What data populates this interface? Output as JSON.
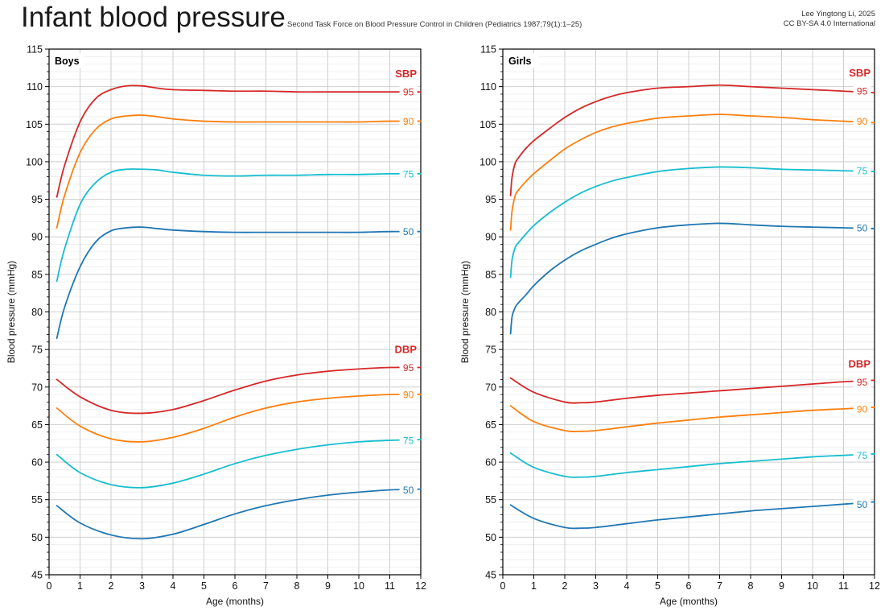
{
  "header": {
    "title": "Infant blood pressure",
    "subtitle": "Second Task Force on Blood Pressure Control in Children (Pediatrics 1987;79(1):1–25)",
    "credit_line1": "Lee Yingtong Li, 2025",
    "credit_line2": "CC BY-SA 4.0 International"
  },
  "colors": {
    "p95": "#d62728",
    "p90": "#ff7f0e",
    "p75": "#17becf",
    "p50": "#1f77b4",
    "group_label": "#d62728"
  },
  "chart_data": [
    {
      "type": "line",
      "panel": "Boys",
      "xlabel": "Age (months)",
      "ylabel": "Blood pressure (mmHg)",
      "xlim": [
        0,
        12
      ],
      "ylim": [
        45,
        115
      ],
      "xticks": [
        0,
        1,
        2,
        3,
        4,
        5,
        6,
        7,
        8,
        9,
        10,
        11,
        12
      ],
      "yticks": [
        45,
        50,
        55,
        60,
        65,
        70,
        75,
        80,
        85,
        90,
        95,
        100,
        105,
        110,
        115
      ],
      "grid": true,
      "groups": [
        {
          "label": "SBP",
          "series": [
            {
              "name": "95",
              "color_key": "p95",
              "x": [
                0.25,
                0.5,
                1,
                1.5,
                2,
                2.5,
                3,
                3.5,
                4,
                5,
                6,
                7,
                8,
                9,
                10,
                11,
                12
              ],
              "y": [
                95.3,
                99.5,
                105.3,
                108.4,
                109.6,
                110.1,
                110.1,
                109.8,
                109.6,
                109.5,
                109.4,
                109.4,
                109.3,
                109.3,
                109.3,
                109.3,
                109.3
              ]
            },
            {
              "name": "90",
              "color_key": "p90",
              "x": [
                0.25,
                0.5,
                1,
                1.5,
                2,
                2.5,
                3,
                3.5,
                4,
                5,
                6,
                7,
                8,
                9,
                10,
                11,
                12
              ],
              "y": [
                91.2,
                95.5,
                101.2,
                104.3,
                105.7,
                106.1,
                106.2,
                106.0,
                105.7,
                105.4,
                105.3,
                105.3,
                105.3,
                105.3,
                105.3,
                105.4,
                105.4
              ]
            },
            {
              "name": "75",
              "color_key": "p75",
              "x": [
                0.25,
                0.5,
                1,
                1.5,
                2,
                2.5,
                3,
                3.5,
                4,
                5,
                6,
                7,
                8,
                9,
                10,
                11,
                12
              ],
              "y": [
                84.1,
                88.4,
                94.3,
                97.2,
                98.6,
                99.0,
                99.0,
                98.9,
                98.6,
                98.2,
                98.1,
                98.2,
                98.2,
                98.3,
                98.3,
                98.4,
                98.4
              ]
            },
            {
              "name": "50",
              "color_key": "p50",
              "x": [
                0.25,
                0.5,
                1,
                1.5,
                2,
                2.5,
                3,
                3.5,
                4,
                5,
                6,
                7,
                8,
                9,
                10,
                11,
                12
              ],
              "y": [
                76.5,
                80.6,
                86.0,
                89.3,
                90.8,
                91.2,
                91.3,
                91.1,
                90.9,
                90.7,
                90.6,
                90.6,
                90.6,
                90.6,
                90.6,
                90.7,
                90.7
              ]
            }
          ]
        },
        {
          "label": "DBP",
          "series": [
            {
              "name": "95",
              "color_key": "p95",
              "x": [
                0.25,
                1,
                2,
                3,
                4,
                5,
                6,
                7,
                8,
                9,
                10,
                11,
                12
              ],
              "y": [
                71.0,
                68.7,
                66.9,
                66.5,
                67.0,
                68.2,
                69.6,
                70.8,
                71.6,
                72.1,
                72.4,
                72.6,
                72.6
              ]
            },
            {
              "name": "90",
              "color_key": "p90",
              "x": [
                0.25,
                1,
                2,
                3,
                4,
                5,
                6,
                7,
                8,
                9,
                10,
                11,
                12
              ],
              "y": [
                67.2,
                64.8,
                63.1,
                62.7,
                63.3,
                64.5,
                66.0,
                67.2,
                68.0,
                68.5,
                68.8,
                69.0,
                69.0
              ]
            },
            {
              "name": "75",
              "color_key": "p75",
              "x": [
                0.25,
                1,
                2,
                3,
                4,
                5,
                6,
                7,
                8,
                9,
                10,
                11,
                12
              ],
              "y": [
                61.0,
                58.6,
                57.0,
                56.6,
                57.2,
                58.4,
                59.8,
                60.9,
                61.7,
                62.3,
                62.7,
                62.9,
                63.0
              ]
            },
            {
              "name": "50",
              "color_key": "p50",
              "x": [
                0.25,
                1,
                2,
                3,
                4,
                5,
                6,
                7,
                8,
                9,
                10,
                11,
                12
              ],
              "y": [
                54.2,
                51.9,
                50.3,
                49.8,
                50.4,
                51.7,
                53.1,
                54.2,
                55.0,
                55.6,
                56.0,
                56.3,
                56.4
              ]
            }
          ]
        }
      ]
    },
    {
      "type": "line",
      "panel": "Girls",
      "xlabel": "Age (months)",
      "ylabel": "Blood pressure (mmHg)",
      "xlim": [
        0,
        12
      ],
      "ylim": [
        45,
        115
      ],
      "xticks": [
        0,
        1,
        2,
        3,
        4,
        5,
        6,
        7,
        8,
        9,
        10,
        11,
        12
      ],
      "yticks": [
        45,
        50,
        55,
        60,
        65,
        70,
        75,
        80,
        85,
        90,
        95,
        100,
        105,
        110,
        115
      ],
      "grid": true,
      "groups": [
        {
          "label": "SBP",
          "series": [
            {
              "name": "95",
              "color_key": "p95",
              "x": [
                0.25,
                0.3,
                0.4,
                0.5,
                0.75,
                1,
                1.5,
                2,
                2.5,
                3,
                3.5,
                4,
                5,
                6,
                7,
                8,
                9,
                10,
                11,
                12
              ],
              "y": [
                95.5,
                98.0,
                99.8,
                100.5,
                101.8,
                102.8,
                104.4,
                105.9,
                107.1,
                108.0,
                108.7,
                109.2,
                109.8,
                110.0,
                110.2,
                110.0,
                109.8,
                109.6,
                109.4,
                109.2
              ]
            },
            {
              "name": "90",
              "color_key": "p90",
              "x": [
                0.25,
                0.3,
                0.4,
                0.5,
                0.75,
                1,
                1.5,
                2,
                2.5,
                3,
                3.5,
                4,
                5,
                6,
                7,
                8,
                9,
                10,
                11,
                12
              ],
              "y": [
                90.9,
                93.5,
                95.5,
                96.2,
                97.4,
                98.4,
                100.1,
                101.7,
                102.9,
                103.9,
                104.6,
                105.1,
                105.8,
                106.1,
                106.3,
                106.1,
                105.9,
                105.6,
                105.4,
                105.2
              ]
            },
            {
              "name": "75",
              "color_key": "p75",
              "x": [
                0.25,
                0.3,
                0.4,
                0.5,
                0.75,
                1,
                1.5,
                2,
                2.5,
                3,
                3.5,
                4,
                5,
                6,
                7,
                8,
                9,
                10,
                11,
                12
              ],
              "y": [
                84.6,
                87.0,
                88.6,
                89.2,
                90.4,
                91.5,
                93.2,
                94.6,
                95.8,
                96.7,
                97.4,
                97.9,
                98.7,
                99.1,
                99.3,
                99.2,
                99.0,
                98.9,
                98.8,
                98.7
              ]
            },
            {
              "name": "50",
              "color_key": "p50",
              "x": [
                0.25,
                0.3,
                0.4,
                0.5,
                0.75,
                1,
                1.5,
                2,
                2.5,
                3,
                3.5,
                4,
                5,
                6,
                7,
                8,
                9,
                10,
                11,
                12
              ],
              "y": [
                77.1,
                79.4,
                80.6,
                81.2,
                82.3,
                83.5,
                85.4,
                86.9,
                88.1,
                89.0,
                89.8,
                90.4,
                91.2,
                91.6,
                91.8,
                91.6,
                91.4,
                91.3,
                91.2,
                91.1
              ]
            }
          ]
        },
        {
          "label": "DBP",
          "series": [
            {
              "name": "95",
              "color_key": "p95",
              "x": [
                0.25,
                1,
                2,
                2.5,
                3,
                4,
                5,
                6,
                7,
                8,
                9,
                10,
                11,
                12
              ],
              "y": [
                71.2,
                69.3,
                68.0,
                67.9,
                68.0,
                68.5,
                68.9,
                69.2,
                69.5,
                69.8,
                70.1,
                70.4,
                70.7,
                70.9
              ]
            },
            {
              "name": "90",
              "color_key": "p90",
              "x": [
                0.25,
                1,
                2,
                2.5,
                3,
                4,
                5,
                6,
                7,
                8,
                9,
                10,
                11,
                12
              ],
              "y": [
                67.5,
                65.4,
                64.2,
                64.1,
                64.2,
                64.7,
                65.2,
                65.6,
                66.0,
                66.3,
                66.6,
                66.9,
                67.1,
                67.3
              ]
            },
            {
              "name": "75",
              "color_key": "p75",
              "x": [
                0.25,
                1,
                2,
                2.5,
                3,
                4,
                5,
                6,
                7,
                8,
                9,
                10,
                11,
                12
              ],
              "y": [
                61.2,
                59.3,
                58.1,
                58.0,
                58.1,
                58.6,
                59.0,
                59.4,
                59.8,
                60.1,
                60.4,
                60.7,
                60.9,
                61.1
              ]
            },
            {
              "name": "50",
              "color_key": "p50",
              "x": [
                0.25,
                1,
                2,
                2.5,
                3,
                4,
                5,
                6,
                7,
                8,
                9,
                10,
                11,
                12
              ],
              "y": [
                54.3,
                52.5,
                51.3,
                51.2,
                51.3,
                51.8,
                52.3,
                52.7,
                53.1,
                53.5,
                53.8,
                54.1,
                54.4,
                54.7
              ]
            }
          ]
        }
      ]
    }
  ]
}
